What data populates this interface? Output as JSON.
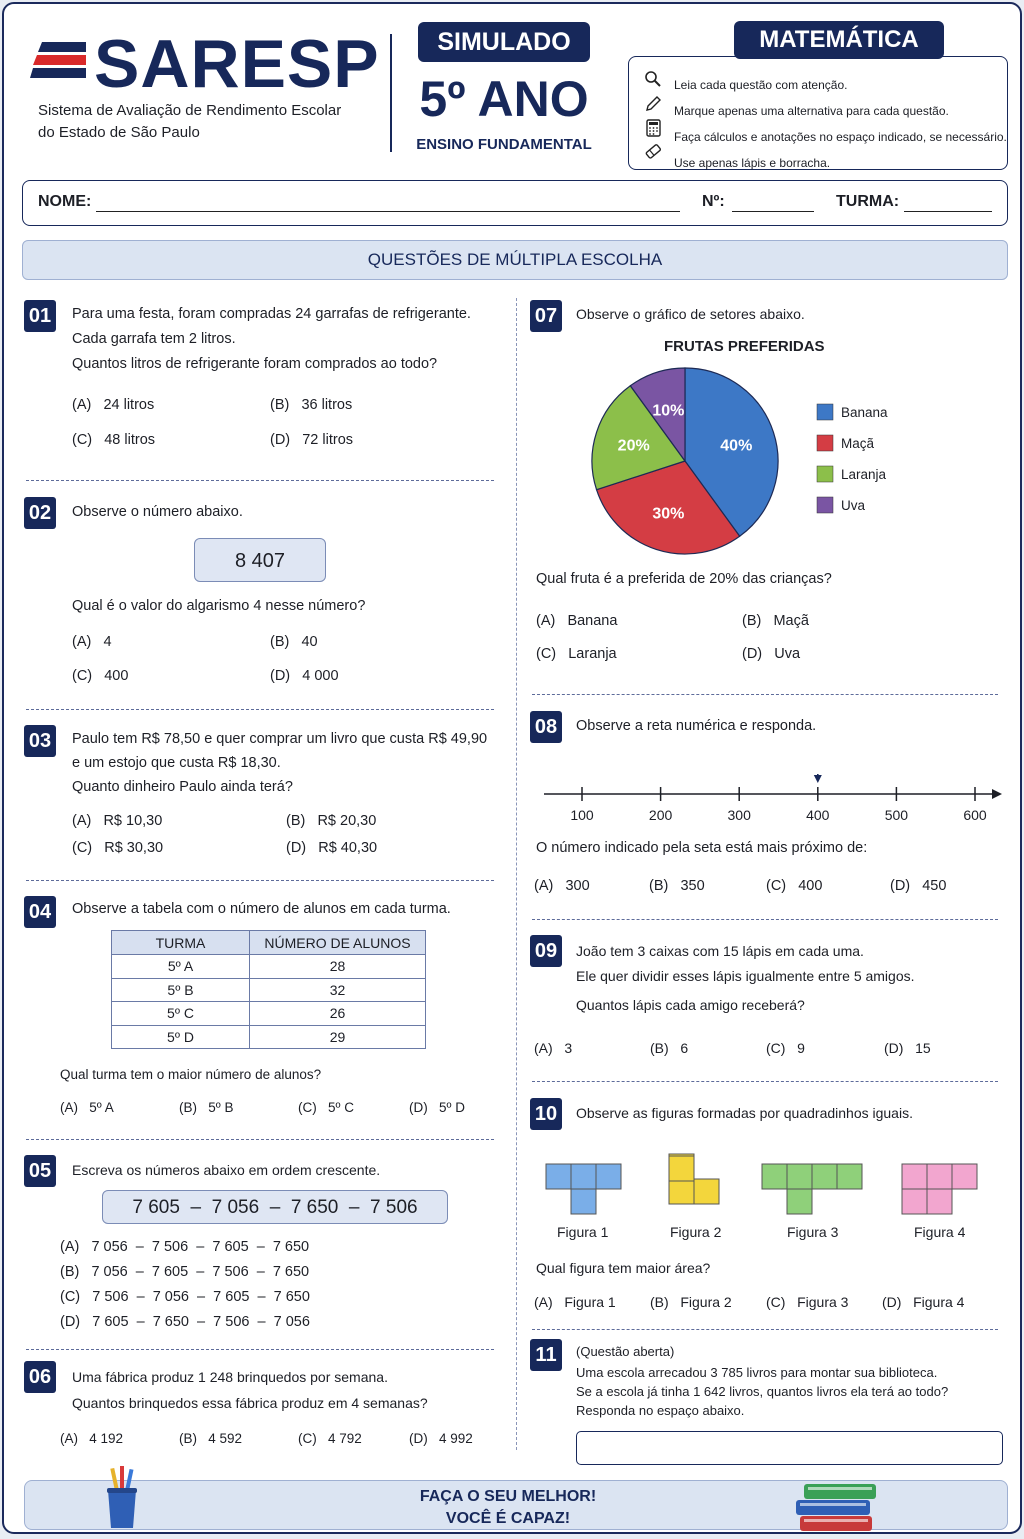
{
  "header": {
    "logo": "SARESP",
    "system_line1": "Sistema de Avaliação de Rendimento Escolar",
    "system_line2": "do Estado de São Paulo",
    "simulado": "SIMULADO",
    "ano": "5º ANO",
    "nivel": "ENSINO FUNDAMENTAL",
    "materia": "MATEMÁTICA",
    "instructions": [
      {
        "icon": "magnifier-icon",
        "text": "Leia cada questão com atenção."
      },
      {
        "icon": "pencil-icon",
        "text": "Marque apenas uma alternativa para cada questão."
      },
      {
        "icon": "calculator-icon",
        "text": "Faça cálculos e anotações no espaço indicado, se necessário."
      },
      {
        "icon": "eraser-icon",
        "text": "Use apenas lápis e borracha."
      }
    ]
  },
  "form": {
    "nome": "NOME:",
    "numero": "Nº:",
    "turma": "TURMA:"
  },
  "section_title": "QUESTÕES DE MÚLTIPLA ESCOLHA",
  "q1": {
    "num": "01",
    "lines": [
      "Para uma festa, foram compradas 24 garrafas de refrigerante.",
      "Cada garrafa tem 2 litros.",
      "Quantos litros de refrigerante foram comprados ao todo?"
    ],
    "opts": [
      [
        "(A)",
        "24 litros"
      ],
      [
        "(B)",
        "36 litros"
      ],
      [
        "(C)",
        "48 litros"
      ],
      [
        "(D)",
        "72 litros"
      ]
    ]
  },
  "q2": {
    "num": "02",
    "intro": "Observe o número abaixo.",
    "number": "8 407",
    "question": "Qual é o valor do algarismo 4 nesse número?",
    "opts": [
      [
        "(A)",
        "4"
      ],
      [
        "(B)",
        "40"
      ],
      [
        "(C)",
        "400"
      ],
      [
        "(D)",
        "4 000"
      ]
    ]
  },
  "q3": {
    "num": "03",
    "lines": [
      "Paulo tem R$ 78,50 e quer comprar um livro que custa R$ 49,90",
      "e um estojo que custa R$ 18,30.",
      "Quanto dinheiro Paulo ainda terá?"
    ],
    "opts": [
      [
        "(A)",
        "R$ 10,30"
      ],
      [
        "(B)",
        "R$  20,30"
      ],
      [
        "(C)",
        "R$ 30,30"
      ],
      [
        "(D)",
        "R$  40,30"
      ]
    ]
  },
  "q4": {
    "num": "04",
    "intro": "Observe a tabela com o número de alunos em cada turma.",
    "headers": [
      "TURMA",
      "NÚMERO DE ALUNOS"
    ],
    "rows": [
      [
        "5º  A",
        "28"
      ],
      [
        "5º  B",
        "32"
      ],
      [
        "5º  C",
        "26"
      ],
      [
        "5º  D",
        "29"
      ]
    ],
    "question": "Qual turma tem o maior número de alunos?",
    "opts": [
      [
        "(A)",
        "5º A"
      ],
      [
        "(B)",
        "5º  B"
      ],
      [
        "(C)",
        "5º C"
      ],
      [
        "(D)",
        "5º  D"
      ]
    ]
  },
  "q5": {
    "num": "05",
    "intro": "Escreva os números abaixo em ordem crescente.",
    "numbers": "7 605  –  7 056  –  7 650  –  7 506",
    "opts": [
      [
        "(A)",
        "7 056  –  7 506  –  7 605  –  7 650"
      ],
      [
        "(B)",
        "7 056  –  7 605  –  7 506  –  7 650"
      ],
      [
        "(C)",
        "7 506  –  7 056  –  7 605  –  7 650"
      ],
      [
        "(D)",
        "7 605  –  7 650  –  7 506  –  7 056"
      ]
    ]
  },
  "q6": {
    "num": "06",
    "lines": [
      "Uma fábrica produz 1 248 brinquedos por semana.",
      "Quantos brinquedos essa fábrica produz em 4 semanas?"
    ],
    "opts": [
      [
        "(A)",
        "4 192"
      ],
      [
        "(B)",
        "4 592"
      ],
      [
        "(C)",
        "4 792"
      ],
      [
        "(D)",
        "4 992"
      ]
    ]
  },
  "q7": {
    "num": "07",
    "intro": "Observe o gráfico de setores abaixo.",
    "question": "Qual fruta é a preferida de 20% das crianças?",
    "opts": [
      [
        "(A)",
        "Banana"
      ],
      [
        "(B)",
        "Maçã"
      ],
      [
        "(C)",
        "Laranja"
      ],
      [
        "(D)",
        "Uva"
      ]
    ]
  },
  "chart_data": {
    "type": "pie",
    "title": "FRUTAS PREFERIDAS",
    "categories": [
      "Banana",
      "Maçã",
      "Laranja",
      "Uva"
    ],
    "values": [
      40,
      30,
      20,
      10
    ],
    "labels": [
      "40%",
      "30%",
      "20%",
      "10%"
    ],
    "colors": [
      "#3d78c6",
      "#d43d44",
      "#8cbf4a",
      "#7a55a3"
    ],
    "legend": "right"
  },
  "q8": {
    "num": "08",
    "intro": "Observe a reta numérica e responda.",
    "ticks": [
      "100",
      "200",
      "300",
      "400",
      "500",
      "600"
    ],
    "arrow_value": 400,
    "question": "O número indicado pela seta está mais próximo de:",
    "opts": [
      [
        "(A)",
        "300"
      ],
      [
        "(B)",
        "350"
      ],
      [
        "(C)",
        "400"
      ],
      [
        "(D)",
        "450"
      ]
    ]
  },
  "q9": {
    "num": "09",
    "lines": [
      "João tem 3 caixas com 15 lápis em cada uma.",
      "Ele quer dividir esses lápis igualmente entre 5 amigos.",
      "Quantos lápis cada amigo receberá?"
    ],
    "opts": [
      [
        "(A)",
        "3"
      ],
      [
        "(B)",
        "6"
      ],
      [
        "(C)",
        "9"
      ],
      [
        "(D)",
        "15"
      ]
    ]
  },
  "q10": {
    "num": "10",
    "intro": "Observe as figuras formadas por quadradinhos iguais.",
    "figures": [
      {
        "label": "Figura 1",
        "color": "#7aaee8"
      },
      {
        "label": "Figura 2",
        "color": "#f3d63c"
      },
      {
        "label": "Figura 3",
        "color": "#8fd07a"
      },
      {
        "label": "Figura 4",
        "color": "#f2a6cf"
      }
    ],
    "question": "Qual figura tem maior área?",
    "opts": [
      [
        "(A)",
        "Figura 1"
      ],
      [
        "(B)",
        "Figura 2"
      ],
      [
        "(C)",
        "Figura 3"
      ],
      [
        "(D)",
        "Figura 4"
      ]
    ]
  },
  "q11": {
    "num": "11",
    "lines": [
      "(Questão aberta)",
      "Uma escola arrecadou 3 785 livros para montar sua biblioteca.",
      "Se a escola já tinha 1 642 livros, quantos livros ela terá ao todo?",
      "Responda no espaço abaixo."
    ]
  },
  "footer": {
    "line1": "FAÇA O SEU MELHOR!",
    "line2": "VOCÊ É CAPAZ!"
  }
}
